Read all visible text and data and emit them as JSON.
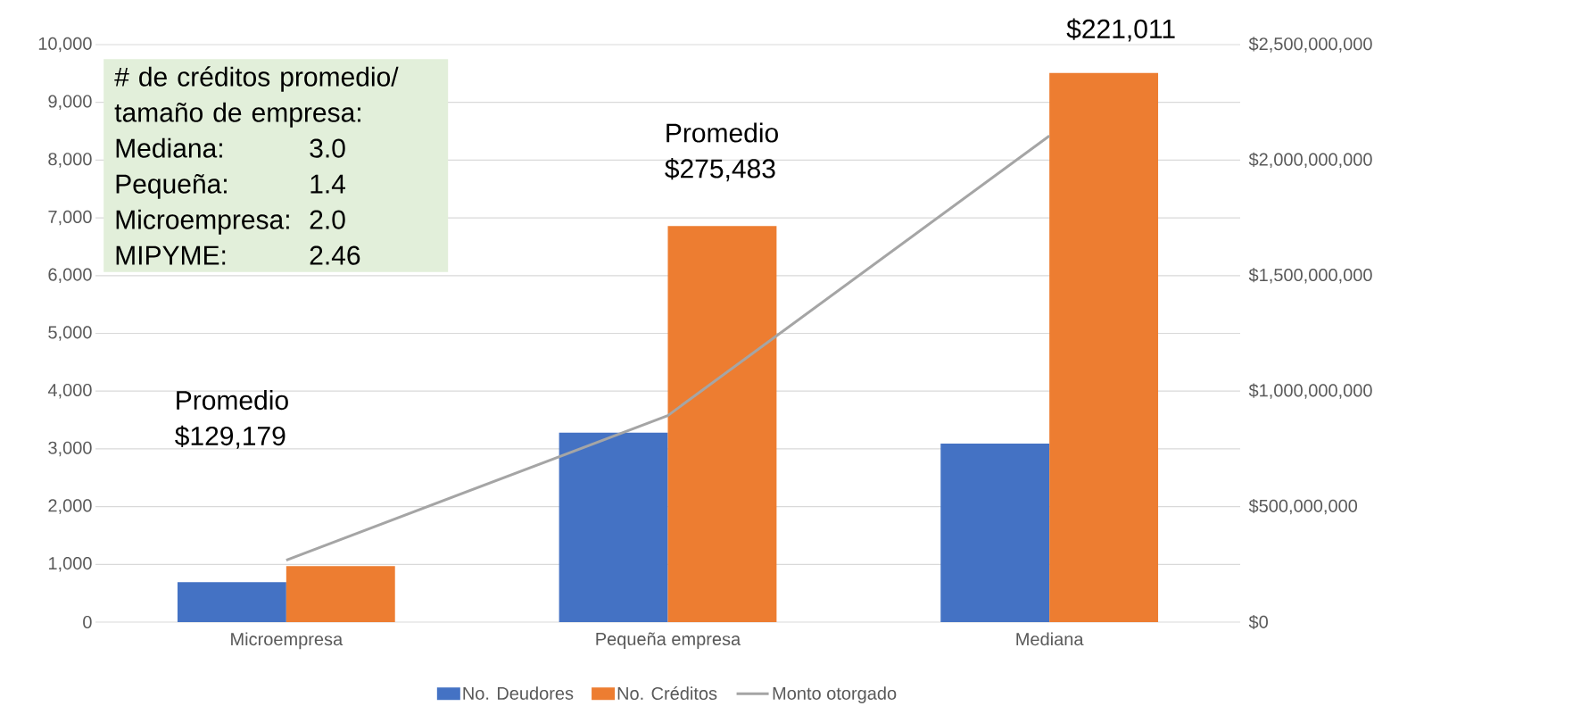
{
  "chart_data": {
    "type": "bar",
    "categories": [
      "Microempresa",
      "Pequeña empresa",
      "Mediana"
    ],
    "series": [
      {
        "name": "No. Deudores",
        "color": "#4472c4",
        "values": [
          690,
          3280,
          3090
        ]
      },
      {
        "name": "No. Créditos",
        "color": "#ed7d31",
        "values": [
          970,
          6860,
          9510
        ]
      },
      {
        "name": "Monto otorgado",
        "type": "line",
        "axis": "y2",
        "color": "#a5a5a5",
        "values": [
          268000000,
          894000000,
          2105000000
        ]
      }
    ],
    "ylim": [
      0,
      10000
    ],
    "yticks": [
      {
        "value": 0,
        "label": "0"
      },
      {
        "value": 1000,
        "label": "1,000"
      },
      {
        "value": 2000,
        "label": "2,000"
      },
      {
        "value": 3000,
        "label": "3,000"
      },
      {
        "value": 4000,
        "label": "4,000"
      },
      {
        "value": 5000,
        "label": "5,000"
      },
      {
        "value": 6000,
        "label": "6,000"
      },
      {
        "value": 7000,
        "label": "7,000"
      },
      {
        "value": 8000,
        "label": "8,000"
      },
      {
        "value": 9000,
        "label": "9,000"
      },
      {
        "value": 10000,
        "label": "10,000"
      }
    ],
    "y2lim": [
      0,
      2500000000
    ],
    "y2ticks": [
      {
        "value": 0,
        "label": "$0"
      },
      {
        "value": 500000000,
        "label": "$500,000,000"
      },
      {
        "value": 1000000000,
        "label": "$1,000,000,000"
      },
      {
        "value": 1500000000,
        "label": "$1,500,000,000"
      },
      {
        "value": 2000000000,
        "label": "$2,000,000,000"
      },
      {
        "value": 2500000000,
        "label": "$2,500,000,000"
      }
    ],
    "grid": "y",
    "legend": "bottom",
    "annotations": [
      "# de créditos promedio/ tamaño de empresa:",
      "Mediana:",
      "3.0",
      "Pequeña:",
      "1.4",
      "Microempresa:",
      "2.0",
      "MIPYME:",
      "2.46",
      "Promedio $129,179",
      "Promedio $275,483",
      "$221,011"
    ]
  }
}
